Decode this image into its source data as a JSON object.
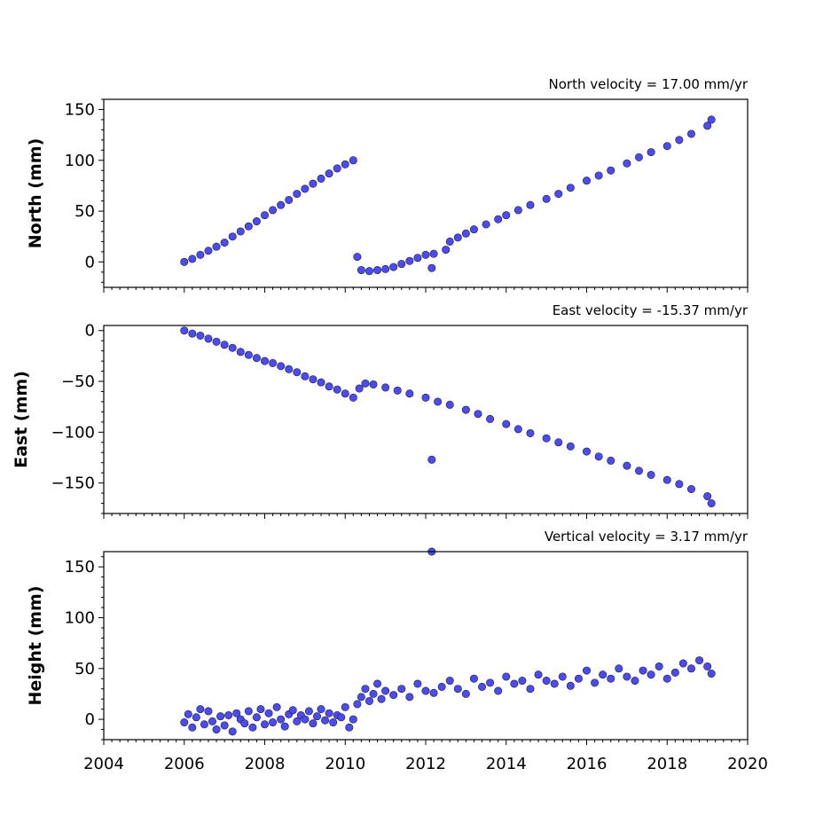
{
  "chart_data": [
    {
      "type": "scatter",
      "title": "North velocity = 17.00 mm/yr",
      "xlabel": "",
      "ylabel": "North (mm)",
      "xlim": [
        2004,
        2020
      ],
      "ylim": [
        -25,
        160
      ],
      "yticks": [
        0,
        50,
        100,
        150
      ],
      "ytick_labels": [
        "0",
        "50",
        "100",
        "150"
      ],
      "grid": false,
      "marker_color": "#4b4bee",
      "series": [
        {
          "x": [
            2006.0,
            2006.2,
            2006.4,
            2006.6,
            2006.8,
            2007.0,
            2007.2,
            2007.4,
            2007.6,
            2007.8,
            2008.0,
            2008.2,
            2008.4,
            2008.6,
            2008.8,
            2009.0,
            2009.2,
            2009.4,
            2009.6,
            2009.8,
            2010.0,
            2010.2,
            2010.3,
            2010.4,
            2010.6,
            2010.8,
            2011.0,
            2011.2,
            2011.4,
            2011.6,
            2011.8,
            2012.0,
            2012.2,
            2012.5,
            2012.6,
            2012.8,
            2013.0,
            2013.2,
            2013.5,
            2013.8,
            2014.0,
            2014.3,
            2014.6,
            2015.0,
            2015.3,
            2015.6,
            2016.0,
            2016.3,
            2016.6,
            2017.0,
            2017.3,
            2017.6,
            2018.0,
            2018.3,
            2018.6,
            2019.0,
            2019.1,
            2012.15
          ],
          "y": [
            0,
            3,
            7,
            11,
            15,
            19,
            25,
            30,
            35,
            40,
            46,
            51,
            56,
            61,
            67,
            72,
            77,
            82,
            87,
            92,
            96,
            100,
            5,
            -8,
            -9,
            -8,
            -7,
            -5,
            -2,
            1,
            4,
            7,
            8,
            12,
            20,
            24,
            28,
            32,
            37,
            42,
            46,
            51,
            56,
            62,
            67,
            73,
            80,
            85,
            90,
            97,
            103,
            108,
            114,
            120,
            126,
            134,
            140,
            -6
          ]
        }
      ]
    },
    {
      "type": "scatter",
      "title": "East velocity = -15.37 mm/yr",
      "xlabel": "",
      "ylabel": "East (mm)",
      "xlim": [
        2004,
        2020
      ],
      "ylim": [
        -180,
        5
      ],
      "yticks": [
        0,
        -50,
        -100,
        -150
      ],
      "ytick_labels": [
        "0",
        "−50",
        "−100",
        "−150"
      ],
      "grid": false,
      "marker_color": "#4b4bee",
      "series": [
        {
          "x": [
            2006.0,
            2006.2,
            2006.4,
            2006.6,
            2006.8,
            2007.0,
            2007.2,
            2007.4,
            2007.6,
            2007.8,
            2008.0,
            2008.2,
            2008.4,
            2008.6,
            2008.8,
            2009.0,
            2009.2,
            2009.4,
            2009.6,
            2009.8,
            2010.0,
            2010.2,
            2010.35,
            2010.5,
            2010.7,
            2011.0,
            2011.3,
            2011.6,
            2012.0,
            2012.3,
            2012.6,
            2013.0,
            2013.3,
            2013.6,
            2014.0,
            2014.3,
            2014.6,
            2015.0,
            2015.3,
            2015.6,
            2016.0,
            2016.3,
            2016.6,
            2017.0,
            2017.3,
            2017.6,
            2018.0,
            2018.3,
            2018.6,
            2019.0,
            2019.1,
            2012.15
          ],
          "y": [
            0,
            -3,
            -5,
            -8,
            -11,
            -14,
            -17,
            -21,
            -24,
            -27,
            -30,
            -32,
            -35,
            -38,
            -41,
            -45,
            -48,
            -51,
            -55,
            -58,
            -62,
            -66,
            -57,
            -52,
            -53,
            -56,
            -59,
            -62,
            -66,
            -70,
            -73,
            -78,
            -82,
            -87,
            -92,
            -97,
            -101,
            -106,
            -110,
            -114,
            -119,
            -124,
            -128,
            -133,
            -138,
            -142,
            -147,
            -151,
            -156,
            -163,
            -170,
            -127
          ]
        }
      ]
    },
    {
      "type": "scatter",
      "title": "Vertical velocity = 3.17 mm/yr",
      "xlabel": "",
      "ylabel": "Height (mm)",
      "xlim": [
        2004,
        2020
      ],
      "ylim": [
        -20,
        165
      ],
      "yticks": [
        0,
        50,
        100,
        150
      ],
      "ytick_labels": [
        "0",
        "50",
        "100",
        "150"
      ],
      "xticks": [
        2004,
        2006,
        2008,
        2010,
        2012,
        2014,
        2016,
        2018,
        2020
      ],
      "xtick_labels": [
        "2004",
        "2006",
        "2008",
        "2010",
        "2012",
        "2014",
        "2016",
        "2018",
        "2020"
      ],
      "grid": false,
      "marker_color": "#4b4bee",
      "series": [
        {
          "x": [
            2006.0,
            2006.1,
            2006.2,
            2006.3,
            2006.4,
            2006.5,
            2006.6,
            2006.7,
            2006.8,
            2006.9,
            2007.0,
            2007.1,
            2007.2,
            2007.3,
            2007.4,
            2007.5,
            2007.6,
            2007.7,
            2007.8,
            2007.9,
            2008.0,
            2008.1,
            2008.2,
            2008.3,
            2008.4,
            2008.5,
            2008.6,
            2008.7,
            2008.8,
            2008.9,
            2009.0,
            2009.1,
            2009.2,
            2009.3,
            2009.4,
            2009.5,
            2009.6,
            2009.7,
            2009.8,
            2009.9,
            2010.0,
            2010.1,
            2010.2,
            2010.3,
            2010.4,
            2010.5,
            2010.6,
            2010.7,
            2010.8,
            2010.9,
            2011.0,
            2011.2,
            2011.4,
            2011.6,
            2011.8,
            2012.0,
            2012.2,
            2012.4,
            2012.6,
            2012.8,
            2013.0,
            2013.2,
            2013.4,
            2013.6,
            2013.8,
            2014.0,
            2014.2,
            2014.4,
            2014.6,
            2014.8,
            2015.0,
            2015.2,
            2015.4,
            2015.6,
            2015.8,
            2016.0,
            2016.2,
            2016.4,
            2016.6,
            2016.8,
            2017.0,
            2017.2,
            2017.4,
            2017.6,
            2017.8,
            2018.0,
            2018.2,
            2018.4,
            2018.6,
            2018.8,
            2019.0,
            2019.1,
            2012.15
          ],
          "y": [
            -3,
            5,
            -8,
            2,
            10,
            -5,
            8,
            -2,
            -10,
            3,
            -6,
            4,
            -12,
            6,
            0,
            -4,
            8,
            -8,
            2,
            10,
            -5,
            6,
            -3,
            12,
            0,
            -7,
            5,
            9,
            -2,
            4,
            0,
            8,
            -4,
            3,
            10,
            -1,
            6,
            -3,
            4,
            2,
            12,
            -8,
            0,
            15,
            22,
            30,
            18,
            25,
            35,
            20,
            28,
            24,
            30,
            22,
            35,
            28,
            26,
            32,
            38,
            30,
            25,
            40,
            32,
            36,
            28,
            42,
            35,
            38,
            30,
            44,
            38,
            35,
            42,
            33,
            40,
            48,
            36,
            44,
            40,
            50,
            42,
            38,
            48,
            44,
            52,
            40,
            46,
            55,
            50,
            58,
            52,
            45,
            165
          ]
        }
      ]
    }
  ]
}
